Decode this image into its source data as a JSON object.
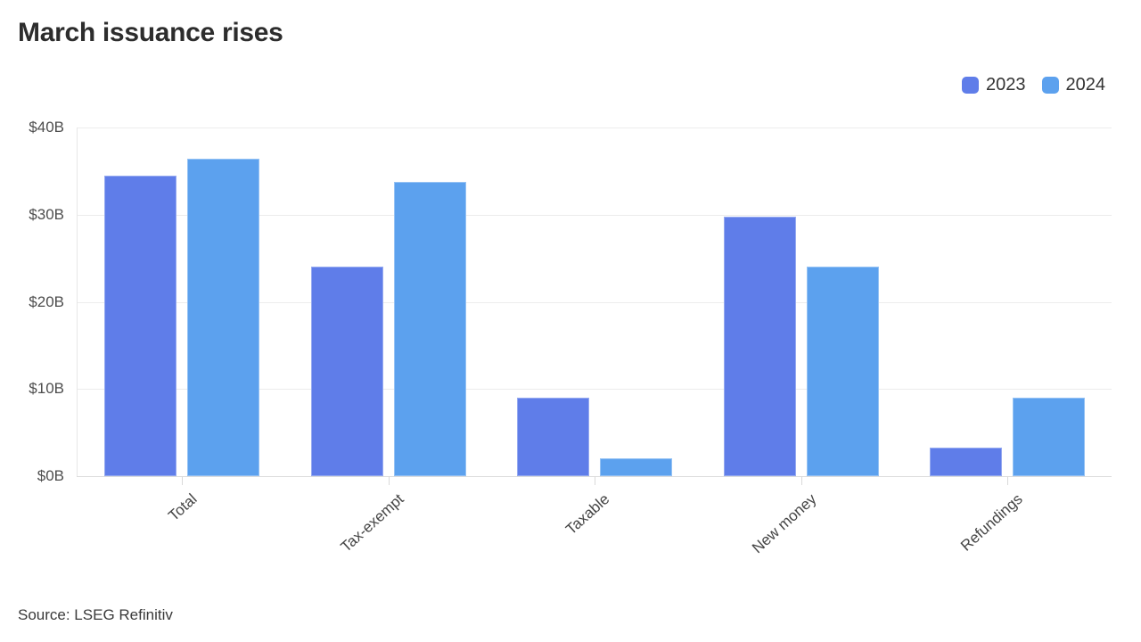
{
  "page": {
    "title": "March issuance rises",
    "source": "Source: LSEG Refinitiv"
  },
  "chart_data": {
    "type": "bar",
    "title": "March issuance rises",
    "categories": [
      "Total",
      "Tax-exempt",
      "Taxable",
      "New money",
      "Refundings"
    ],
    "series": [
      {
        "name": "2023",
        "color": "#5F7DE9",
        "values": [
          34.5,
          24.0,
          9.0,
          29.8,
          3.3
        ]
      },
      {
        "name": "2024",
        "color": "#5CA1EE",
        "values": [
          36.4,
          33.8,
          2.0,
          24.0,
          9.0
        ]
      }
    ],
    "y_axis": {
      "tick_labels": [
        "$40B",
        "$30B",
        "$20B",
        "$10B",
        "$0B"
      ],
      "ylim": [
        0,
        40
      ]
    },
    "xlabel": "",
    "ylabel": "",
    "grid": true,
    "legend_position": "top-right",
    "source": "Source: LSEG Refinitiv",
    "colors": {
      "series_2023": "#5F7DE9",
      "series_2024": "#5CA1EE",
      "gridline": "#ececec",
      "axis_line": "#dcdcdc",
      "title_text": "#2d2d2d",
      "axis_text": "#4d4d4d"
    }
  }
}
